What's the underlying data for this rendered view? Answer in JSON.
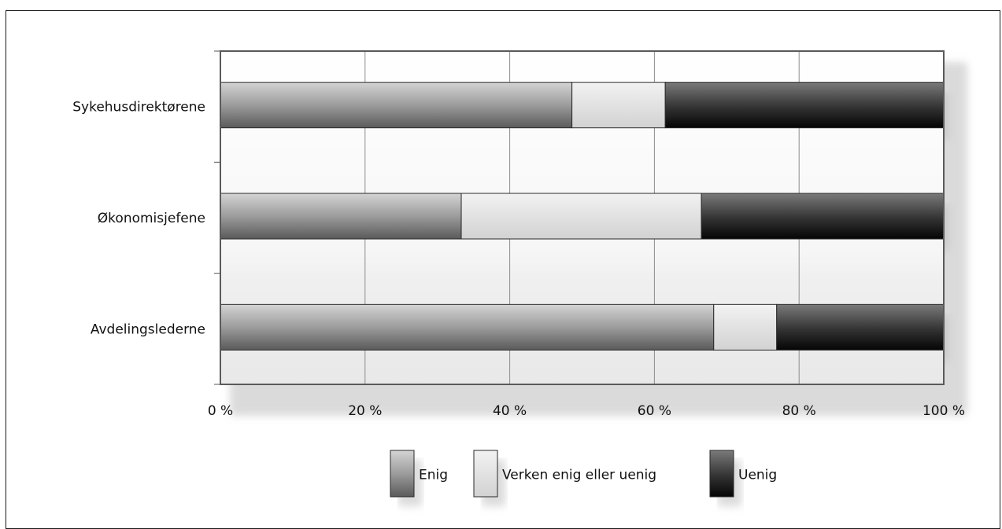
{
  "chart_data": {
    "type": "bar",
    "orientation": "horizontal",
    "stacked": true,
    "normalized_percent": true,
    "categories": [
      "Sykehusdirektørene",
      "Økonomisjefene",
      "Avdelingslederne"
    ],
    "series": [
      {
        "name": "Enig",
        "values": [
          48.6,
          33.3,
          68.2
        ]
      },
      {
        "name": "Verken enig eller uenig",
        "values": [
          12.9,
          33.2,
          8.7
        ]
      },
      {
        "name": "Uenig",
        "values": [
          38.5,
          33.5,
          23.1
        ]
      }
    ],
    "x_ticks": [
      "0 %",
      "20 %",
      "40 %",
      "60 %",
      "80 %",
      "100 %"
    ],
    "xlim": [
      0,
      100
    ],
    "grid": true,
    "legend_position": "bottom",
    "colors": {
      "enig": "#a9a9a9",
      "verken": "#e6e6e6",
      "uenig": "#3a3a3a"
    }
  }
}
